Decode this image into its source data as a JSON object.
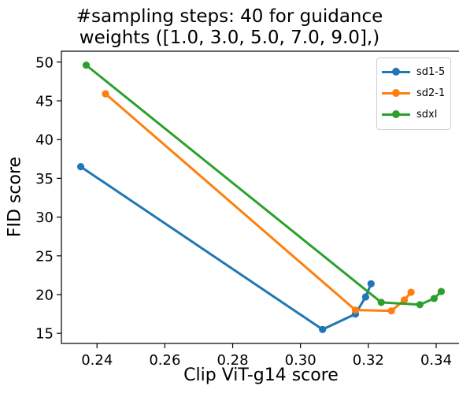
{
  "chart_data": {
    "type": "line",
    "title": [
      "#sampling steps: 40 for guidance",
      "weights ([1.0, 3.0, 5.0, 7.0, 9.0],)"
    ],
    "xlabel": "Clip ViT-g14 score",
    "ylabel": "FID score",
    "xlim": [
      0.2295,
      0.3472
    ],
    "ylim": [
      13.7,
      51.4
    ],
    "x_ticks": [
      0.24,
      0.26,
      0.28,
      0.3,
      0.32,
      0.34
    ],
    "x_tick_labels": [
      "0.24",
      "0.26",
      "0.28",
      "0.30",
      "0.32",
      "0.34"
    ],
    "y_ticks": [
      15,
      20,
      25,
      30,
      35,
      40,
      45,
      50
    ],
    "y_tick_labels": [
      "15",
      "20",
      "25",
      "30",
      "35",
      "40",
      "45",
      "50"
    ],
    "grid": false,
    "legend_position": "top-right",
    "series": [
      {
        "name": "sd1-5",
        "color": "#1f77b4",
        "x": [
          0.2352,
          0.3065,
          0.3162,
          0.3192,
          0.3208
        ],
        "y": [
          36.5,
          15.5,
          17.5,
          19.7,
          21.4
        ]
      },
      {
        "name": "sd2-1",
        "color": "#ff7f0e",
        "x": [
          0.2425,
          0.3162,
          0.3268,
          0.3306,
          0.3326
        ],
        "y": [
          45.9,
          18.0,
          17.9,
          19.3,
          20.3
        ]
      },
      {
        "name": "sdxl",
        "color": "#2ca02c",
        "x": [
          0.2368,
          0.3238,
          0.3352,
          0.3394,
          0.3415
        ],
        "y": [
          49.6,
          19.0,
          18.7,
          19.5,
          20.4
        ]
      }
    ]
  }
}
